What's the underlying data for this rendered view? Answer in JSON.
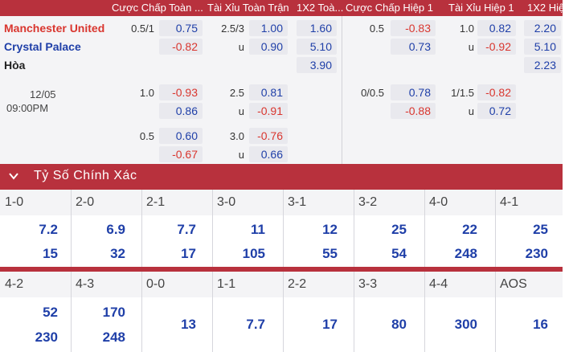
{
  "headers": [
    "Cược Chấp Toàn ...",
    "Tài Xỉu Toàn Trận",
    "1X2 Toà...",
    "Cược Chấp Hiệp 1",
    "Tài Xỉu Hiệp 1",
    "1X2 Hiệ..."
  ],
  "match": {
    "home": "Manchester United",
    "away": "Crystal Palace",
    "draw": "Hòa",
    "date": "12/05",
    "time": "09:00PM"
  },
  "rows": [
    {
      "hcap_line": "0.5/1",
      "hcap_home": "0.75",
      "hcap_away": "-0.82",
      "ou_line": "2.5/3",
      "ou_over": "1.00",
      "ou_u": "u",
      "ou_under": "0.90",
      "x12_home": "1.60",
      "x12_away": "5.10",
      "x12_draw": "3.90",
      "h1_line": "0.5",
      "h1_home": "-0.83",
      "h1_away": "0.73",
      "h1ou_line": "1.0",
      "h1ou_over": "0.82",
      "h1ou_u": "u",
      "h1ou_under": "-0.92",
      "h1x12_home": "2.20",
      "h1x12_away": "5.10",
      "h1x12_draw": "2.23"
    },
    {
      "hcap_line": "1.0",
      "hcap_home": "-0.93",
      "hcap_away": "0.86",
      "ou_line": "2.5",
      "ou_over": "0.81",
      "ou_u": "u",
      "ou_under": "-0.91",
      "h1_line": "0/0.5",
      "h1_home": "0.78",
      "h1_away": "-0.88",
      "h1ou_line": "1/1.5",
      "h1ou_over": "-0.82",
      "h1ou_u": "u",
      "h1ou_under": "0.72"
    },
    {
      "hcap_line": "0.5",
      "hcap_home": "0.60",
      "hcap_away": "-0.67",
      "ou_line": "3.0",
      "ou_over": "-0.76",
      "ou_u": "u",
      "ou_under": "0.66"
    }
  ],
  "correct_score": {
    "title": "Tỷ Số Chính Xác",
    "row1": [
      {
        "score": "1-0",
        "a": "7.2",
        "b": "15"
      },
      {
        "score": "2-0",
        "a": "6.9",
        "b": "32"
      },
      {
        "score": "2-1",
        "a": "7.7",
        "b": "17"
      },
      {
        "score": "3-0",
        "a": "11",
        "b": "105"
      },
      {
        "score": "3-1",
        "a": "12",
        "b": "55"
      },
      {
        "score": "3-2",
        "a": "25",
        "b": "54"
      },
      {
        "score": "4-0",
        "a": "22",
        "b": "248"
      },
      {
        "score": "4-1",
        "a": "25",
        "b": "230"
      }
    ],
    "row2": [
      {
        "score": "4-2",
        "a": "52",
        "b": "230"
      },
      {
        "score": "4-3",
        "a": "170",
        "b": "248"
      },
      {
        "score": "0-0",
        "v": "13"
      },
      {
        "score": "1-1",
        "v": "7.7"
      },
      {
        "score": "2-2",
        "v": "17"
      },
      {
        "score": "3-3",
        "v": "80"
      },
      {
        "score": "4-4",
        "v": "300"
      },
      {
        "score": "AOS",
        "v": "16"
      }
    ]
  },
  "colors": {
    "accent": "#b8313d",
    "positive": "#1f3fa8",
    "negative": "#d9362f"
  }
}
